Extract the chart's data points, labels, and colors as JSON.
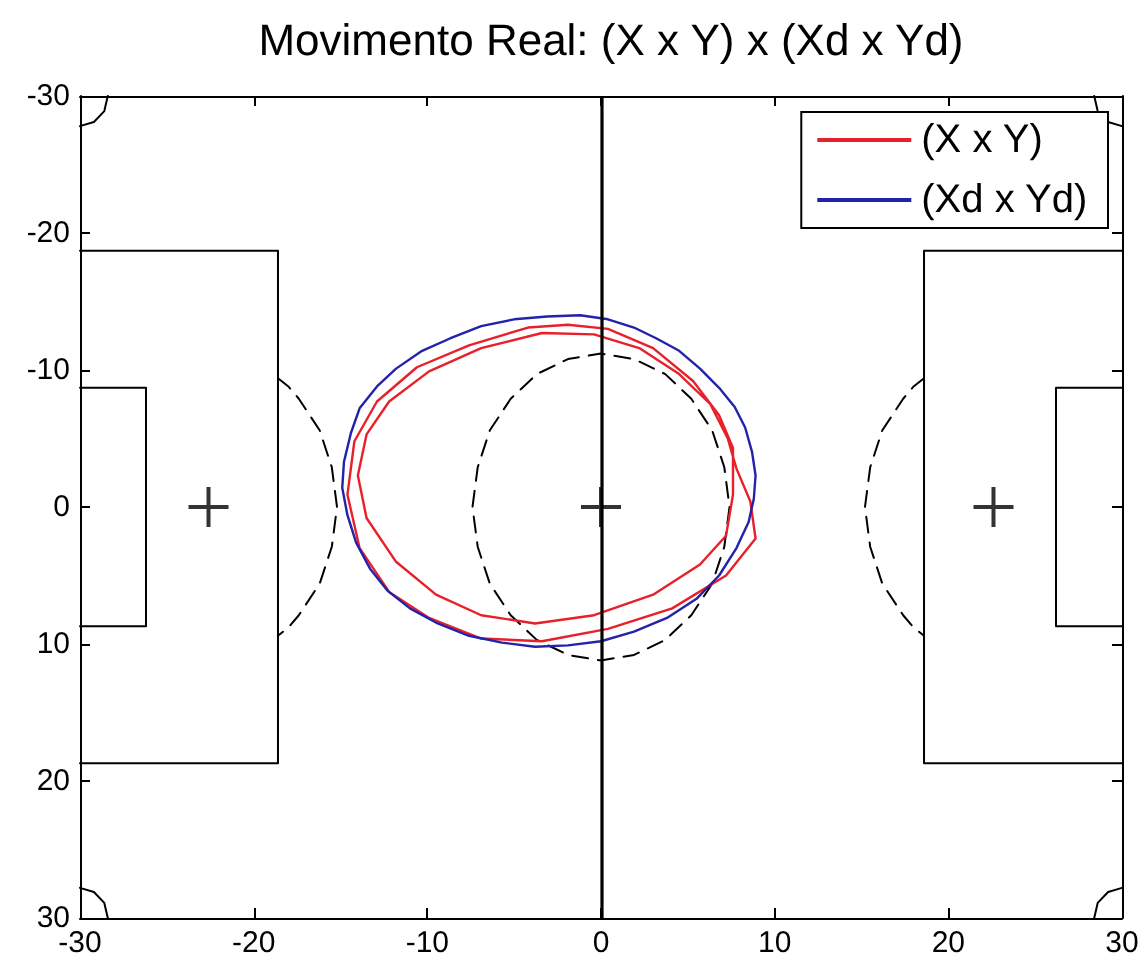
{
  "chart_data": {
    "type": "line",
    "title": "Movimento Real: (X x Y) x (Xd x Yd)",
    "xlim": [
      -30,
      30
    ],
    "xticks": [
      -30,
      -20,
      -10,
      0,
      10,
      20,
      30
    ],
    "ylim": [
      30,
      -30
    ],
    "yticks": [
      -30,
      -20,
      -10,
      0,
      10,
      20,
      30
    ],
    "grid": false,
    "legend": "top right",
    "marker": "none",
    "line_style": "solid",
    "ref_lines": [
      {
        "axis": "x",
        "value": 0,
        "color": "#000000"
      }
    ],
    "series": [
      {
        "color": "#000000",
        "x": [
          -30,
          -18.6,
          -18.6,
          -30
        ],
        "values": [
          -18.7,
          -18.7,
          18.7,
          18.7
        ]
      },
      {
        "color": "#000000",
        "x": [
          30,
          18.6,
          18.6,
          30
        ],
        "values": [
          -18.7,
          -18.7,
          18.7,
          18.7
        ]
      },
      {
        "color": "#000000",
        "x": [
          -30,
          -26.2,
          -26.2,
          -30
        ],
        "values": [
          -8.7,
          -8.7,
          8.7,
          8.7
        ]
      },
      {
        "color": "#000000",
        "x": [
          30,
          26.2,
          26.2,
          30
        ],
        "values": [
          -8.7,
          -8.7,
          8.7,
          8.7
        ]
      },
      {
        "color": "#000000",
        "x": [
          -28.4,
          -28.6,
          -29.2,
          -30
        ],
        "values": [
          -30,
          -28.9,
          -28.1,
          -27.8
        ]
      },
      {
        "color": "#000000",
        "x": [
          28.4,
          28.6,
          29.2,
          30
        ],
        "values": [
          -30,
          -28.9,
          -28.1,
          -27.8
        ]
      },
      {
        "color": "#000000",
        "x": [
          -28.4,
          -28.6,
          -29.2,
          -30
        ],
        "values": [
          30,
          28.9,
          28.1,
          27.8
        ]
      },
      {
        "color": "#000000",
        "x": [
          28.4,
          28.6,
          29.2,
          30
        ],
        "values": [
          30,
          28.9,
          28.1,
          27.8
        ]
      },
      {
        "color": "#000000",
        "line_style": "dashed",
        "x": [
          7.4,
          7.1,
          6.4,
          5.2,
          3.7,
          1.9,
          0,
          -1.9,
          -3.7,
          -5.2,
          -6.4,
          -7.1,
          -7.4,
          -7.1,
          -6.4,
          -5.2,
          -3.7,
          -1.9,
          0,
          1.9,
          3.7,
          5.2,
          6.4,
          7.1,
          7.4,
          7.1
        ],
        "values": [
          0,
          2.9,
          5.6,
          7.9,
          9.7,
          10.8,
          11.2,
          10.8,
          9.7,
          7.9,
          5.6,
          2.9,
          0,
          -2.9,
          -5.6,
          -7.9,
          -9.7,
          -10.8,
          -11.2,
          -10.8,
          -9.7,
          -7.9,
          -5.6,
          -2.9,
          0,
          2.9
        ]
      },
      {
        "color": "#000000",
        "line_style": "dashed",
        "x": [
          -18.6,
          -18.0,
          -17.4,
          -16.2,
          -15.5,
          -15.2,
          -15.5,
          -16.2,
          -17.4,
          -18.0,
          -18.6
        ],
        "values": [
          -9.4,
          -8.8,
          -7.9,
          -5.6,
          -2.9,
          0,
          2.9,
          5.6,
          7.9,
          8.8,
          9.4
        ]
      },
      {
        "color": "#000000",
        "line_style": "dashed",
        "x": [
          18.6,
          18.0,
          17.4,
          16.2,
          15.5,
          15.2,
          15.5,
          16.2,
          17.4,
          18.0,
          18.6
        ],
        "values": [
          -9.4,
          -8.8,
          -7.9,
          -5.6,
          -2.9,
          0,
          2.9,
          5.6,
          7.9,
          8.8,
          9.4
        ]
      },
      {
        "type": "scatter",
        "marker": "cross",
        "color": "#000000",
        "x": [
          -22.6,
          0,
          22.6
        ],
        "values": [
          0,
          0,
          0
        ]
      },
      {
        "name": "(X x Y)",
        "color": "#e8202a",
        "x": [
          8.9,
          7.2,
          4.1,
          0.4,
          -3.4,
          -6.9,
          -9.9,
          -12.2,
          -13.9,
          -14.6,
          -14.2,
          -12.9,
          -10.6,
          -7.6,
          -4.2,
          -1.9,
          0.4,
          3.0,
          5.3,
          6.8,
          7.6,
          7.6,
          7.2,
          5.7,
          3.0,
          -0.4,
          -3.8,
          -6.9,
          -9.5,
          -11.8,
          -13.5,
          -14.0,
          -13.5,
          -12.2,
          -9.9,
          -6.9,
          -3.4,
          -0.4,
          2.2,
          4.5,
          6.3,
          7.3,
          7.8,
          8.6,
          8.9,
          7.2
        ],
        "values": [
          2.3,
          5.0,
          7.4,
          8.9,
          9.8,
          9.6,
          8.1,
          6.2,
          3.0,
          -0.9,
          -4.8,
          -7.7,
          -10.2,
          -11.8,
          -13.1,
          -13.3,
          -13.0,
          -11.6,
          -9.2,
          -6.7,
          -4.3,
          -0.9,
          2.1,
          4.2,
          6.4,
          7.9,
          8.5,
          7.9,
          6.4,
          4.0,
          0.8,
          -2.3,
          -5.3,
          -7.7,
          -9.9,
          -11.6,
          -12.7,
          -12.6,
          -11.6,
          -9.7,
          -7.5,
          -5.0,
          -2.8,
          -0.4,
          2.3,
          5.0
        ]
      },
      {
        "name": "(Xd x Yd)",
        "color": "#2222aa",
        "x": [
          -1.2,
          -3.1,
          -5.0,
          -6.9,
          -8.7,
          -10.3,
          -11.8,
          -12.9,
          -13.9,
          -14.4,
          -14.8,
          -14.9,
          -14.6,
          -14.1,
          -13.3,
          -12.3,
          -11.0,
          -9.4,
          -7.6,
          -5.7,
          -3.8,
          -1.9,
          0,
          1.9,
          3.8,
          5.5,
          6.8,
          7.8,
          8.5,
          8.8,
          8.9,
          8.7,
          8.3,
          7.7,
          6.8,
          5.7,
          4.5,
          3.2,
          1.9,
          0.4,
          -1.2,
          -3.1
        ],
        "values": [
          -14.0,
          -13.9,
          -13.7,
          -13.2,
          -12.3,
          -11.4,
          -10.1,
          -8.8,
          -7.2,
          -5.4,
          -3.3,
          -1.4,
          0.6,
          2.6,
          4.5,
          6.1,
          7.4,
          8.5,
          9.4,
          9.9,
          10.2,
          10.1,
          9.8,
          9.1,
          8.1,
          6.7,
          5.0,
          3.0,
          1.1,
          -0.6,
          -2.3,
          -4.0,
          -5.8,
          -7.3,
          -8.7,
          -10.1,
          -11.4,
          -12.3,
          -13.1,
          -13.7,
          -14.0,
          -13.9
        ]
      }
    ]
  }
}
